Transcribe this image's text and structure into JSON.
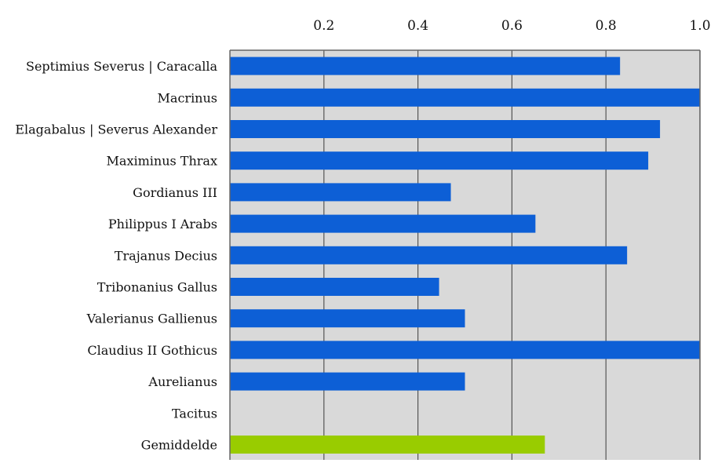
{
  "chart_data": {
    "type": "bar",
    "orientation": "horizontal",
    "categories": [
      "Septimius Severus | Caracalla",
      "Macrinus",
      "Elagabalus | Severus Alexander",
      "Maximinus Thrax",
      "Gordianus III",
      "Philippus I Arabs",
      "Trajanus Decius",
      "Tribonanius Gallus",
      "Valerianus Gallienus",
      "Claudius II Gothicus",
      "Aurelianus",
      "Tacitus",
      "Gemiddelde"
    ],
    "values": [
      0.83,
      1.0,
      0.915,
      0.89,
      0.47,
      0.65,
      0.845,
      0.445,
      0.5,
      1.0,
      0.5,
      null,
      0.67
    ],
    "bar_colors": [
      "#0d5fd6",
      "#0d5fd6",
      "#0d5fd6",
      "#0d5fd6",
      "#0d5fd6",
      "#0d5fd6",
      "#0d5fd6",
      "#0d5fd6",
      "#0d5fd6",
      "#0d5fd6",
      "#0d5fd6",
      "#0d5fd6",
      "#99cc00"
    ],
    "x_ticks": [
      0.2,
      0.4,
      0.6,
      0.8,
      1.0
    ],
    "x_tick_labels": [
      "0.2",
      "0.4",
      "0.6",
      "0.8",
      "1.0"
    ],
    "xlim": [
      0,
      1.0
    ],
    "x_axis_position": "top",
    "grid": true,
    "plot_background": "#d9d9d9",
    "title": "",
    "xlabel": "",
    "ylabel": ""
  }
}
